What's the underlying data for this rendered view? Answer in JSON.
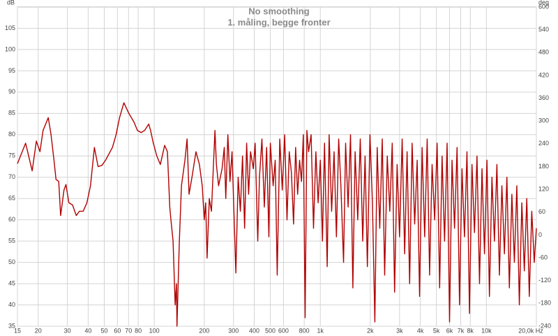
{
  "chart_data": {
    "type": "line",
    "title": "No smoothing",
    "subtitle": "1. måling, begge fronter",
    "y_label": "dB",
    "y2_label": "deg",
    "x_scale": "log",
    "grid": true,
    "xlim": [
      15,
      20000
    ],
    "xticks": [
      15,
      20,
      30,
      40,
      50,
      60,
      70,
      80,
      100,
      200,
      300,
      400,
      500,
      600,
      800,
      {
        "value": 1000,
        "label": "1k"
      },
      {
        "value": 2000,
        "label": "2k"
      },
      {
        "value": 3000,
        "label": "3k"
      },
      {
        "value": 4000,
        "label": "4k"
      },
      {
        "value": 5000,
        "label": "5k"
      },
      {
        "value": 6000,
        "label": "6k"
      },
      {
        "value": 7000,
        "label": "7k"
      },
      {
        "value": 8000,
        "label": "8k"
      },
      {
        "value": 10000,
        "label": "10k"
      },
      {
        "value": 20000,
        "label": "20,0k Hz"
      }
    ],
    "ylim": [
      35,
      110
    ],
    "yticks": [
      35,
      40,
      45,
      50,
      55,
      60,
      65,
      70,
      75,
      80,
      85,
      90,
      95,
      100,
      105
    ],
    "y2lim": [
      -240,
      600
    ],
    "y2ticks": [
      -240,
      -180,
      -120,
      -60,
      0,
      60,
      120,
      180,
      240,
      300,
      360,
      420,
      480,
      540,
      600
    ],
    "x": [
      15,
      16.8,
      18.4,
      19.5,
      20.5,
      21.4,
      23,
      23.9,
      24.9,
      25.6,
      26.6,
      27.3,
      28.6,
      29.4,
      30.6,
      32.2,
      33.9,
      35.4,
      37.3,
      39.3,
      41.3,
      43.6,
      45.9,
      48.4,
      50.9,
      56,
      58.9,
      61.8,
      65.6,
      70.3,
      75.4,
      79.2,
      83.3,
      87.5,
      92.6,
      95,
      98.7,
      103.6,
      108.8,
      115.5,
      120,
      124,
      126,
      129.8,
      133.6,
      136,
      137,
      141.6,
      145.8,
      153,
      157.6,
      162,
      168.7,
      178.3,
      187,
      194.5,
      200,
      204,
      208,
      214.5,
      221,
      232,
      236.7,
      244,
      256,
      264,
      269.6,
      277.5,
      285.7,
      294,
      310,
      320,
      330,
      340,
      350,
      360,
      370,
      380,
      395,
      405,
      420,
      430,
      445,
      460,
      475,
      490,
      500,
      520,
      535,
      550,
      570,
      590,
      610,
      630,
      650,
      670,
      690,
      710,
      730,
      750,
      770,
      790,
      810,
      830,
      850,
      880,
      910,
      940,
      970,
      1000,
      1030,
      1060,
      1100,
      1130,
      1170,
      1210,
      1250,
      1290,
      1330,
      1380,
      1420,
      1470,
      1520,
      1570,
      1620,
      1680,
      1740,
      1800,
      1860,
      1920,
      1990,
      2060,
      2130,
      2200,
      2280,
      2360,
      2440,
      2530,
      2620,
      2710,
      2800,
      2900,
      3000,
      3110,
      3220,
      3330,
      3450,
      3570,
      3700,
      3830,
      3960,
      4100,
      4250,
      4400,
      4550,
      4710,
      4880,
      5050,
      5230,
      5410,
      5600,
      5800,
      6000,
      6210,
      6430,
      6660,
      6890,
      7130,
      7380,
      7640,
      7910,
      8190,
      8480,
      8780,
      9090,
      9410,
      9740,
      10080,
      10430,
      10800,
      11180,
      11570,
      11980,
      12400,
      12840,
      13290,
      13750,
      14240,
      14740,
      15250,
      15790,
      16350,
      16920,
      17510,
      18130,
      18760,
      19420,
      20000
    ],
    "series": [
      {
        "color": "#b00000",
        "values": [
          73.2,
          78,
          71.5,
          78.5,
          76,
          81,
          84,
          80,
          74,
          69.5,
          69,
          61,
          67,
          68.3,
          64,
          63.5,
          61,
          62,
          62,
          64,
          68,
          77,
          72.5,
          72.8,
          74,
          77,
          80,
          84,
          87.5,
          85,
          83,
          81,
          80.5,
          81,
          82.5,
          81,
          78,
          75,
          73,
          77.5,
          76,
          63,
          60,
          55,
          40,
          45,
          35,
          55,
          68,
          74,
          79,
          66,
          70,
          76,
          73,
          68,
          60,
          64,
          51,
          65,
          62,
          81,
          73,
          68,
          72,
          77,
          65,
          80,
          69,
          76,
          47.5,
          70,
          62,
          75,
          58,
          78,
          66,
          76,
          72,
          78,
          55,
          70,
          79,
          63,
          77,
          56,
          78,
          68,
          74,
          47,
          79,
          67,
          80,
          60,
          76,
          71,
          59,
          77,
          66,
          74,
          69,
          80,
          37,
          81,
          76,
          80,
          58,
          76,
          64,
          74,
          55,
          78,
          49,
          80,
          62,
          76,
          56,
          79,
          68,
          50,
          78,
          63,
          80,
          44,
          76,
          60,
          79,
          55,
          75,
          49,
          80,
          64,
          36,
          77,
          58,
          79,
          47,
          75,
          62,
          78,
          43,
          73,
          56,
          79,
          52,
          76,
          45,
          78,
          59,
          74,
          42,
          77,
          56,
          79,
          47,
          73,
          60,
          78,
          44,
          75,
          55,
          78,
          36,
          74,
          58,
          77,
          40,
          72,
          56,
          76,
          38,
          73,
          57,
          75,
          45,
          72,
          52,
          74,
          42,
          70,
          55,
          73,
          47,
          68,
          52,
          70,
          44,
          66,
          50,
          68,
          40,
          64,
          48,
          65,
          42,
          62,
          50,
          58
        ]
      }
    ]
  }
}
